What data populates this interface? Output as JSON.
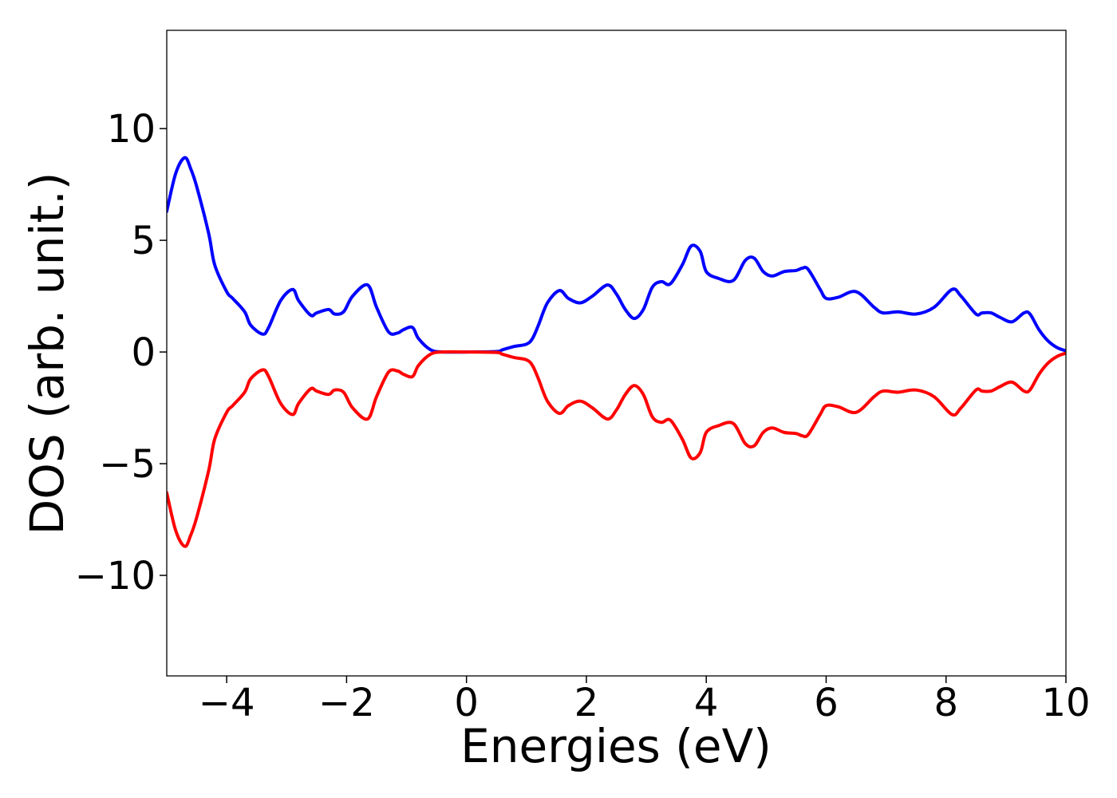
{
  "chart_data": {
    "type": "line",
    "title": "",
    "xlabel": "Energies (eV)",
    "ylabel": "DOS (arb. unit.)",
    "xlim": [
      -5,
      10
    ],
    "ylim": [
      -14.5,
      14.4
    ],
    "xticks": [
      -4,
      -2,
      0,
      2,
      4,
      6,
      8,
      10
    ],
    "yticks": [
      -10,
      -5,
      0,
      5,
      10
    ],
    "xtick_labels": [
      "−4",
      "−2",
      "0",
      "2",
      "4",
      "6",
      "8",
      "10"
    ],
    "ytick_labels": [
      "−10",
      "−5",
      "0",
      "5",
      "10"
    ],
    "grid": false,
    "legend": "none",
    "series": [
      {
        "color": "#0000ff",
        "x": [
          -5.0,
          -4.85,
          -4.7,
          -4.6,
          -4.5,
          -4.3,
          -4.2,
          -4.0,
          -3.9,
          -3.7,
          -3.6,
          -3.4,
          -3.3,
          -3.1,
          -2.9,
          -2.8,
          -2.6,
          -2.5,
          -2.3,
          -2.2,
          -2.05,
          -1.9,
          -1.65,
          -1.5,
          -1.3,
          -1.15,
          -1.05,
          -0.9,
          -0.8,
          -0.6,
          -0.4,
          0.0,
          0.5,
          0.6,
          0.8,
          1.0,
          1.1,
          1.2,
          1.35,
          1.55,
          1.7,
          1.9,
          2.1,
          2.35,
          2.5,
          2.65,
          2.8,
          2.95,
          3.1,
          3.25,
          3.4,
          3.6,
          3.75,
          3.9,
          4.0,
          4.2,
          4.45,
          4.65,
          4.8,
          4.95,
          5.1,
          5.3,
          5.5,
          5.6,
          5.7,
          5.9,
          6.0,
          6.2,
          6.5,
          6.8,
          6.95,
          7.2,
          7.5,
          7.8,
          8.1,
          8.25,
          8.5,
          8.6,
          8.75,
          8.9,
          9.1,
          9.3,
          9.4,
          9.55,
          9.7,
          9.85,
          10.0
        ],
        "values": [
          6.3,
          8.0,
          8.7,
          8.2,
          7.4,
          5.3,
          3.9,
          2.7,
          2.4,
          1.8,
          1.2,
          0.8,
          1.1,
          2.3,
          2.8,
          2.3,
          1.65,
          1.75,
          1.9,
          1.7,
          1.8,
          2.5,
          3.0,
          2.0,
          0.9,
          0.85,
          1.0,
          1.1,
          0.6,
          0.1,
          0.0,
          0.0,
          0.02,
          0.1,
          0.25,
          0.35,
          0.6,
          1.2,
          2.2,
          2.75,
          2.4,
          2.2,
          2.5,
          3.0,
          2.6,
          1.9,
          1.5,
          1.9,
          2.9,
          3.15,
          3.05,
          3.9,
          4.75,
          4.5,
          3.6,
          3.3,
          3.2,
          4.1,
          4.2,
          3.6,
          3.4,
          3.6,
          3.65,
          3.75,
          3.7,
          2.8,
          2.4,
          2.45,
          2.7,
          2.0,
          1.75,
          1.8,
          1.7,
          2.0,
          2.8,
          2.5,
          1.7,
          1.75,
          1.75,
          1.55,
          1.35,
          1.75,
          1.7,
          1.0,
          0.5,
          0.2,
          0.05
        ]
      },
      {
        "color": "#ff0000",
        "x": [
          -5.0,
          -4.85,
          -4.7,
          -4.6,
          -4.5,
          -4.3,
          -4.2,
          -4.0,
          -3.9,
          -3.7,
          -3.6,
          -3.4,
          -3.3,
          -3.1,
          -2.9,
          -2.8,
          -2.6,
          -2.5,
          -2.3,
          -2.2,
          -2.05,
          -1.9,
          -1.65,
          -1.5,
          -1.3,
          -1.15,
          -1.05,
          -0.9,
          -0.8,
          -0.6,
          -0.4,
          0.0,
          0.5,
          0.6,
          0.8,
          1.0,
          1.1,
          1.2,
          1.35,
          1.55,
          1.7,
          1.9,
          2.1,
          2.35,
          2.5,
          2.65,
          2.8,
          2.95,
          3.1,
          3.25,
          3.4,
          3.6,
          3.75,
          3.9,
          4.0,
          4.2,
          4.45,
          4.65,
          4.8,
          4.95,
          5.1,
          5.3,
          5.5,
          5.6,
          5.7,
          5.9,
          6.0,
          6.2,
          6.5,
          6.8,
          6.95,
          7.2,
          7.5,
          7.8,
          8.1,
          8.25,
          8.5,
          8.6,
          8.75,
          8.9,
          9.1,
          9.3,
          9.4,
          9.55,
          9.7,
          9.85,
          10.0
        ],
        "values": [
          -6.3,
          -8.0,
          -8.7,
          -8.2,
          -7.4,
          -5.3,
          -3.9,
          -2.7,
          -2.4,
          -1.8,
          -1.2,
          -0.8,
          -1.1,
          -2.3,
          -2.8,
          -2.3,
          -1.65,
          -1.75,
          -1.9,
          -1.7,
          -1.8,
          -2.5,
          -3.0,
          -2.0,
          -0.9,
          -0.85,
          -1.0,
          -1.1,
          -0.6,
          -0.1,
          0.0,
          0.0,
          -0.02,
          -0.1,
          -0.25,
          -0.35,
          -0.6,
          -1.2,
          -2.2,
          -2.75,
          -2.4,
          -2.2,
          -2.5,
          -3.0,
          -2.6,
          -1.9,
          -1.5,
          -1.9,
          -2.9,
          -3.15,
          -3.05,
          -3.9,
          -4.75,
          -4.5,
          -3.6,
          -3.3,
          -3.2,
          -4.1,
          -4.2,
          -3.6,
          -3.4,
          -3.6,
          -3.65,
          -3.75,
          -3.7,
          -2.8,
          -2.4,
          -2.45,
          -2.7,
          -2.0,
          -1.75,
          -1.8,
          -1.7,
          -2.0,
          -2.8,
          -2.5,
          -1.7,
          -1.75,
          -1.75,
          -1.55,
          -1.35,
          -1.75,
          -1.7,
          -1.0,
          -0.5,
          -0.2,
          -0.05
        ]
      }
    ]
  }
}
